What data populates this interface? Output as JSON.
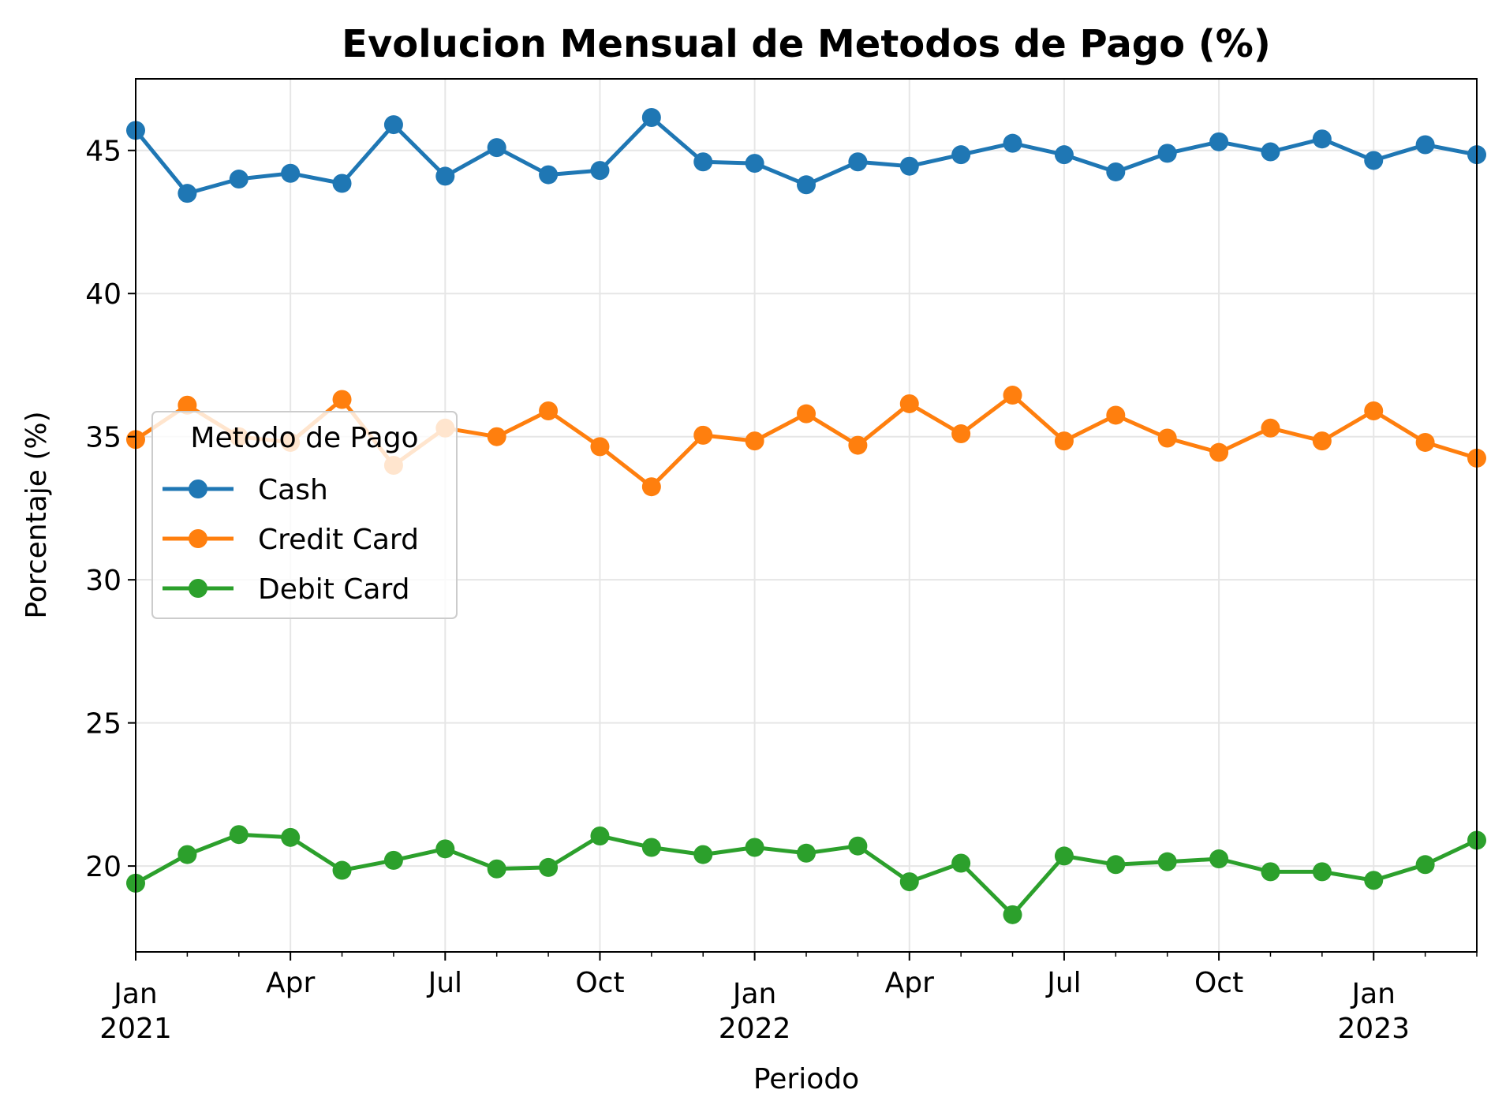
{
  "chart_data": {
    "type": "line",
    "title": "Evolucion Mensual de Metodos de Pago (%)",
    "xlabel": "Periodo",
    "ylabel": "Porcentaje (%)",
    "x": [
      "2021-01",
      "2021-02",
      "2021-03",
      "2021-04",
      "2021-05",
      "2021-06",
      "2021-07",
      "2021-08",
      "2021-09",
      "2021-10",
      "2021-11",
      "2021-12",
      "2022-01",
      "2022-02",
      "2022-03",
      "2022-04",
      "2022-05",
      "2022-06",
      "2022-07",
      "2022-08",
      "2022-09",
      "2022-10",
      "2022-11",
      "2022-12",
      "2023-01",
      "2023-02",
      "2023-03"
    ],
    "xlim": [
      "2021-01",
      "2023-03"
    ],
    "ylim": [
      17,
      47.5
    ],
    "yticks": [
      20,
      25,
      30,
      35,
      40,
      45
    ],
    "xticks_major": [
      {
        "x": "2021-01",
        "label": "Jan",
        "year": "2021"
      },
      {
        "x": "2021-04",
        "label": "Apr",
        "year": ""
      },
      {
        "x": "2021-07",
        "label": "Jul",
        "year": ""
      },
      {
        "x": "2021-10",
        "label": "Oct",
        "year": ""
      },
      {
        "x": "2022-01",
        "label": "Jan",
        "year": "2022"
      },
      {
        "x": "2022-04",
        "label": "Apr",
        "year": ""
      },
      {
        "x": "2022-07",
        "label": "Jul",
        "year": ""
      },
      {
        "x": "2022-10",
        "label": "Oct",
        "year": ""
      },
      {
        "x": "2023-01",
        "label": "Jan",
        "year": "2023"
      }
    ],
    "grid": true,
    "legend": {
      "title": "Metodo de Pago",
      "placement": "center-left"
    },
    "series": [
      {
        "name": "Cash",
        "color": "#1f77b4",
        "values": [
          45.7,
          43.5,
          44.0,
          44.2,
          43.85,
          45.9,
          44.1,
          45.1,
          44.15,
          44.3,
          46.15,
          44.6,
          44.55,
          43.8,
          44.6,
          44.45,
          44.85,
          45.25,
          44.85,
          44.25,
          44.9,
          45.3,
          44.95,
          45.4,
          44.65,
          45.2,
          44.85
        ]
      },
      {
        "name": "Credit Card",
        "color": "#ff7f0e",
        "values": [
          34.9,
          36.1,
          35.0,
          34.8,
          36.3,
          34.0,
          35.3,
          35.0,
          35.9,
          34.65,
          33.25,
          35.05,
          34.85,
          35.8,
          34.7,
          36.15,
          35.1,
          36.45,
          34.85,
          35.75,
          34.95,
          34.45,
          35.3,
          34.85,
          35.9,
          34.8,
          34.25
        ]
      },
      {
        "name": "Debit Card",
        "color": "#2ca02c",
        "values": [
          19.4,
          20.4,
          21.1,
          21.0,
          19.85,
          20.2,
          20.6,
          19.9,
          19.95,
          21.05,
          20.65,
          20.4,
          20.65,
          20.45,
          20.7,
          19.45,
          20.1,
          18.3,
          20.35,
          20.05,
          20.15,
          20.25,
          19.8,
          19.8,
          19.5,
          20.05,
          20.9
        ]
      }
    ]
  }
}
